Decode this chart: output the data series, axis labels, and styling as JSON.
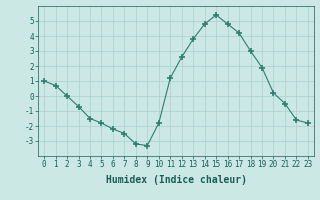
{
  "x": [
    0,
    1,
    2,
    3,
    4,
    5,
    6,
    7,
    8,
    9,
    10,
    11,
    12,
    13,
    14,
    15,
    16,
    17,
    18,
    19,
    20,
    21,
    22,
    23
  ],
  "y": [
    1.0,
    0.7,
    0.0,
    -0.7,
    -1.5,
    -1.8,
    -2.2,
    -2.5,
    -3.2,
    -3.3,
    -1.8,
    1.2,
    2.6,
    3.8,
    4.8,
    5.4,
    4.8,
    4.2,
    3.0,
    1.9,
    0.2,
    -0.5,
    -1.6,
    -1.8
  ],
  "line_color": "#2e7d6e",
  "marker": "+",
  "marker_size": 4,
  "xlabel": "Humidex (Indice chaleur)",
  "xlim": [
    -0.5,
    23.5
  ],
  "ylim": [
    -4,
    6
  ],
  "yticks": [
    -3,
    -2,
    -1,
    0,
    1,
    2,
    3,
    4,
    5
  ],
  "xticks": [
    0,
    1,
    2,
    3,
    4,
    5,
    6,
    7,
    8,
    9,
    10,
    11,
    12,
    13,
    14,
    15,
    16,
    17,
    18,
    19,
    20,
    21,
    22,
    23
  ],
  "bg_color": "#cce8e4",
  "grid_color": "#b0d4d0",
  "text_color": "#1a5e52",
  "xlabel_fontsize": 7,
  "tick_fontsize": 5.5
}
